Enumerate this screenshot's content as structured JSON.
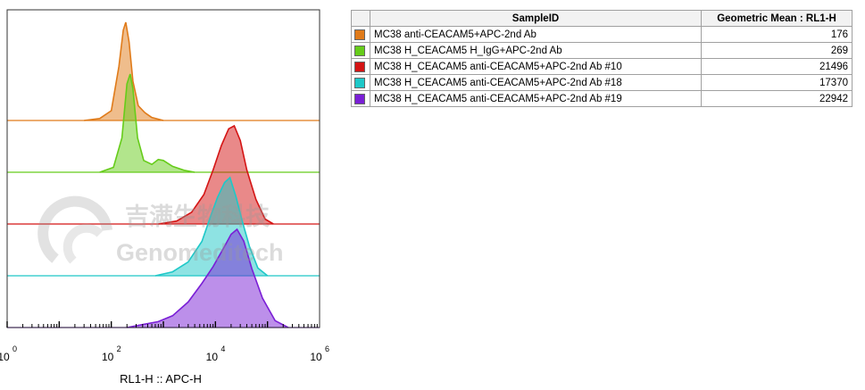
{
  "chart_data": {
    "type": "area",
    "subtype": "histogram-overlay-stacked",
    "xlabel": "RL1-H :: APC-H",
    "xscale": "log",
    "xlim": [
      1,
      1000000
    ],
    "xticks": [
      {
        "value": 1,
        "base": "10",
        "exp": "0"
      },
      {
        "value": 100,
        "base": "10",
        "exp": "2"
      },
      {
        "value": 10000,
        "base": "10",
        "exp": "4"
      },
      {
        "value": 1000000,
        "base": "10",
        "exp": "6"
      }
    ],
    "series": [
      {
        "name": "MC38 anti-CEACAM5+APC-2nd Ab",
        "color": "#e07b1a",
        "x": [
          30,
          60,
          100,
          140,
          170,
          190,
          220,
          260,
          330,
          440,
          600,
          1000
        ],
        "y": [
          0.0,
          0.02,
          0.1,
          0.55,
          0.92,
          1.0,
          0.8,
          0.4,
          0.15,
          0.08,
          0.03,
          0.0
        ]
      },
      {
        "name": "MC38 H_CEACAM5 H_IgG+APC-2nd Ab",
        "color": "#66cc1a",
        "x": [
          60,
          110,
          160,
          200,
          230,
          260,
          320,
          420,
          600,
          800,
          1000,
          1500,
          2500,
          4000
        ],
        "y": [
          0.0,
          0.05,
          0.35,
          0.9,
          1.0,
          0.85,
          0.35,
          0.12,
          0.08,
          0.13,
          0.12,
          0.06,
          0.02,
          0.0
        ]
      },
      {
        "name": "MC38 H_CEACAM5 anti-CEACAM5+APC-2nd Ab #10",
        "color": "#d41414",
        "x": [
          800,
          1800,
          3500,
          6000,
          9000,
          13000,
          18000,
          23000,
          30000,
          40000,
          60000,
          90000,
          130000
        ],
        "y": [
          0.0,
          0.03,
          0.12,
          0.3,
          0.55,
          0.8,
          0.97,
          1.0,
          0.85,
          0.55,
          0.25,
          0.05,
          0.0
        ]
      },
      {
        "name": "MC38 H_CEACAM5 anti-CEACAM5+APC-2nd Ab #18",
        "color": "#1ec8c8",
        "x": [
          700,
          1500,
          3000,
          5500,
          8000,
          11000,
          15000,
          19000,
          25000,
          33000,
          45000,
          65000,
          100000
        ],
        "y": [
          0.0,
          0.04,
          0.14,
          0.35,
          0.6,
          0.8,
          0.95,
          1.0,
          0.8,
          0.55,
          0.3,
          0.08,
          0.0
        ]
      },
      {
        "name": "MC38 H_CEACAM5 anti-CEACAM5+APC-2nd Ab #19",
        "color": "#7a1fd6",
        "x": [
          200,
          400,
          800,
          1500,
          3000,
          5500,
          9000,
          14000,
          20000,
          26000,
          35000,
          50000,
          80000,
          140000,
          250000
        ],
        "y": [
          0.0,
          0.03,
          0.06,
          0.12,
          0.26,
          0.45,
          0.62,
          0.8,
          0.95,
          1.0,
          0.88,
          0.6,
          0.3,
          0.07,
          0.0
        ]
      }
    ]
  },
  "table": {
    "headers": {
      "sample": "SampleID",
      "value": "Geometric Mean : RL1-H"
    },
    "rows": [
      {
        "sample": "MC38 anti-CEACAM5+APC-2nd Ab",
        "value": "176",
        "color": "#e07b1a"
      },
      {
        "sample": "MC38 H_CEACAM5 H_IgG+APC-2nd Ab",
        "value": "269",
        "color": "#66cc1a"
      },
      {
        "sample": "MC38 H_CEACAM5 anti-CEACAM5+APC-2nd Ab #10",
        "value": "21496",
        "color": "#d41414"
      },
      {
        "sample": "MC38 H_CEACAM5 anti-CEACAM5+APC-2nd Ab #18",
        "value": "17370",
        "color": "#1ec8c8"
      },
      {
        "sample": "MC38 H_CEACAM5 anti-CEACAM5+APC-2nd Ab #19",
        "value": "22942",
        "color": "#7a1fd6"
      }
    ]
  },
  "watermark": {
    "line1": "吉满生物科技",
    "line2": "Genomeditech"
  }
}
